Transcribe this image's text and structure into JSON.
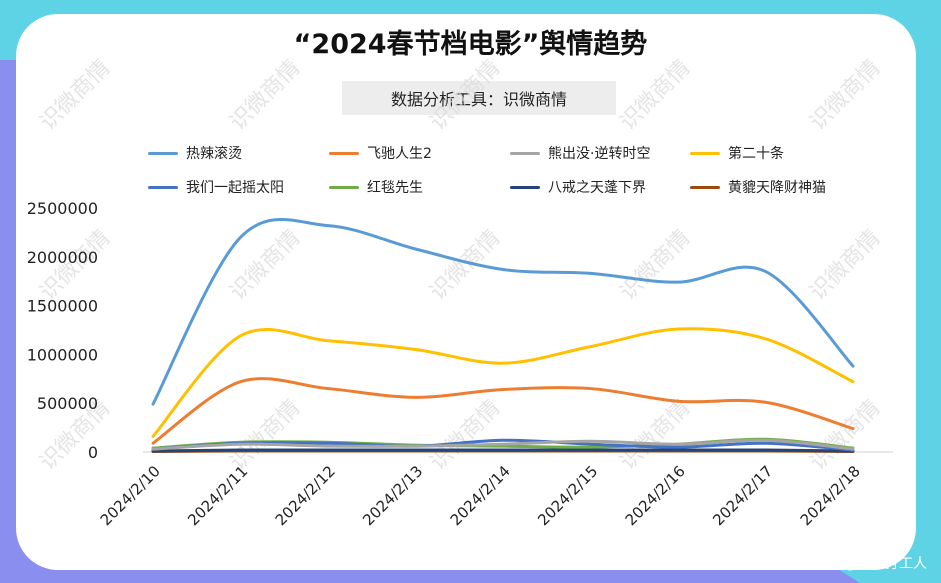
{
  "title": "“2024春节档电影”舆情趋势",
  "subtitle": "数据分析工具：识微商情",
  "watermark": "识微商情",
  "credit": "CSDN @舆情打工人",
  "colors": {
    "bg_purple": "#8a8fef",
    "bg_cyan": "#5ed3e6",
    "card": "#ffffff"
  },
  "chart_data": {
    "type": "line",
    "title": "“2024春节档电影”舆情趋势",
    "categories": [
      "2024/2/10",
      "2024/2/11",
      "2024/2/12",
      "2024/2/13",
      "2024/2/14",
      "2024/2/15",
      "2024/2/16",
      "2024/2/17",
      "2024/2/18"
    ],
    "ylim": [
      0,
      2500000
    ],
    "yticks": [
      "0",
      "500000",
      "1000000",
      "1500000",
      "2000000",
      "2500000"
    ],
    "legend_position": "top",
    "grid": false,
    "series": [
      {
        "name": "热辣滚烫",
        "color": "#5b9bd5",
        "values": [
          490000,
          2200000,
          2320000,
          2080000,
          1870000,
          1830000,
          1740000,
          1850000,
          880000
        ]
      },
      {
        "name": "飞驰人生2",
        "color": "#ed7d31",
        "values": [
          90000,
          720000,
          650000,
          560000,
          640000,
          650000,
          520000,
          510000,
          240000
        ]
      },
      {
        "name": "熊出没·逆转时空",
        "color": "#a5a5a5",
        "values": [
          30000,
          80000,
          60000,
          60000,
          80000,
          110000,
          80000,
          120000,
          30000
        ]
      },
      {
        "name": "第二十条",
        "color": "#ffc000",
        "values": [
          160000,
          1190000,
          1140000,
          1050000,
          910000,
          1080000,
          1260000,
          1160000,
          720000
        ]
      },
      {
        "name": "我们一起摇太阳",
        "color": "#4472c4",
        "values": [
          30000,
          90000,
          90000,
          60000,
          120000,
          80000,
          50000,
          90000,
          20000
        ]
      },
      {
        "name": "红毯先生",
        "color": "#70ad47",
        "values": [
          40000,
          100000,
          100000,
          70000,
          60000,
          50000,
          80000,
          130000,
          40000
        ]
      },
      {
        "name": "八戒之天蓬下界",
        "color": "#264478",
        "values": [
          10000,
          20000,
          20000,
          20000,
          20000,
          20000,
          20000,
          20000,
          10000
        ]
      },
      {
        "name": "黄貔天降财神猫",
        "color": "#9e480e",
        "values": [
          5000,
          10000,
          10000,
          10000,
          10000,
          10000,
          10000,
          10000,
          5000
        ]
      }
    ]
  }
}
